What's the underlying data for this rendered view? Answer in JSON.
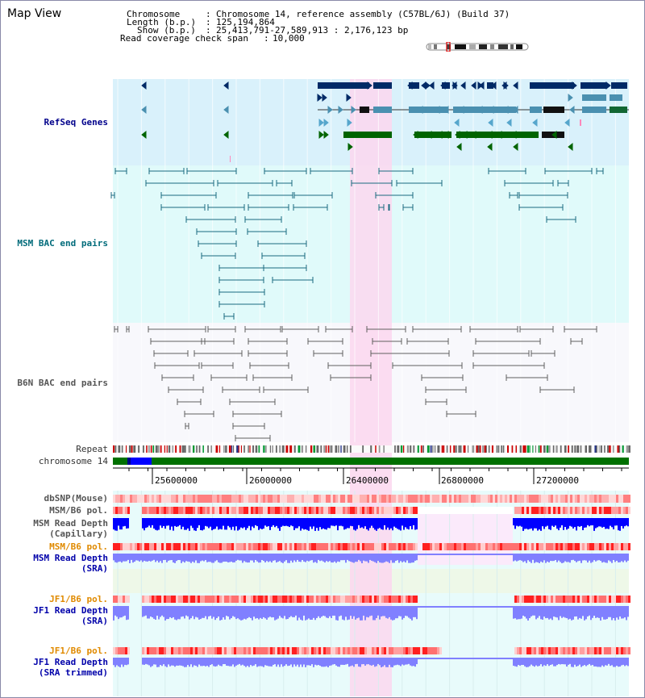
{
  "header": {
    "title": "Map View",
    "chromosome_key": "Chromosome",
    "chromosome_val": "Chromosome 14, reference assembly (C57BL/6J) (Build 37)",
    "length_key": "Length (b.p.)",
    "length_val": "125,194,864",
    "show_key": "Show (b.p.)",
    "show_val": "25,413,791-27,589,913 : 2,176,123 bp",
    "coverage_key": "Read coverage check span",
    "coverage_val": "10,000"
  },
  "tracks": {
    "refseq": "RefSeq Genes",
    "msm_bac": "MSM BAC end pairs",
    "b6n_bac": "B6N BAC end pairs",
    "repeat": "Repeat",
    "chromosome": "chromosome 14",
    "dbsnp": "dbSNP(Mouse)",
    "msm_b6_pol": "MSM/B6 pol.",
    "msm_depth_cap_1": "MSM Read Depth",
    "msm_depth_cap_2": "(Capillary)",
    "msm_b6_pol_sra": "MSM/B6 pol.",
    "msm_depth_sra_1": "MSM Read Depth",
    "msm_depth_sra_2": "(SRA)",
    "jf1_b6_pol": "JF1/B6 pol.",
    "jf1_depth_1": "JF1 Read Depth",
    "jf1_depth_2": "(SRA)",
    "jf1_b6_pol_trim": "JF1/B6 pol.",
    "jf1_trim_1": "JF1 Read Depth",
    "jf1_trim_2": "(SRA trimmed)"
  },
  "axis": {
    "ticks": [
      "25600000",
      "26000000",
      "26400000",
      "26800000",
      "27200000"
    ]
  },
  "colors": {
    "refseq_bg": "#d9f1fb",
    "msm_bg": "#e0fafa",
    "highlight": "#fbd7ee",
    "gene_navy": "#002a66",
    "gene_steel": "#4a90b0",
    "gene_green": "#006400",
    "chromosome": "#007000",
    "bac_line": "#1a6a80",
    "b6n_line": "#606060",
    "snp_red": "#ff0000",
    "depth_blue": "#0000ff",
    "depth_sra": "#8080ff"
  }
}
